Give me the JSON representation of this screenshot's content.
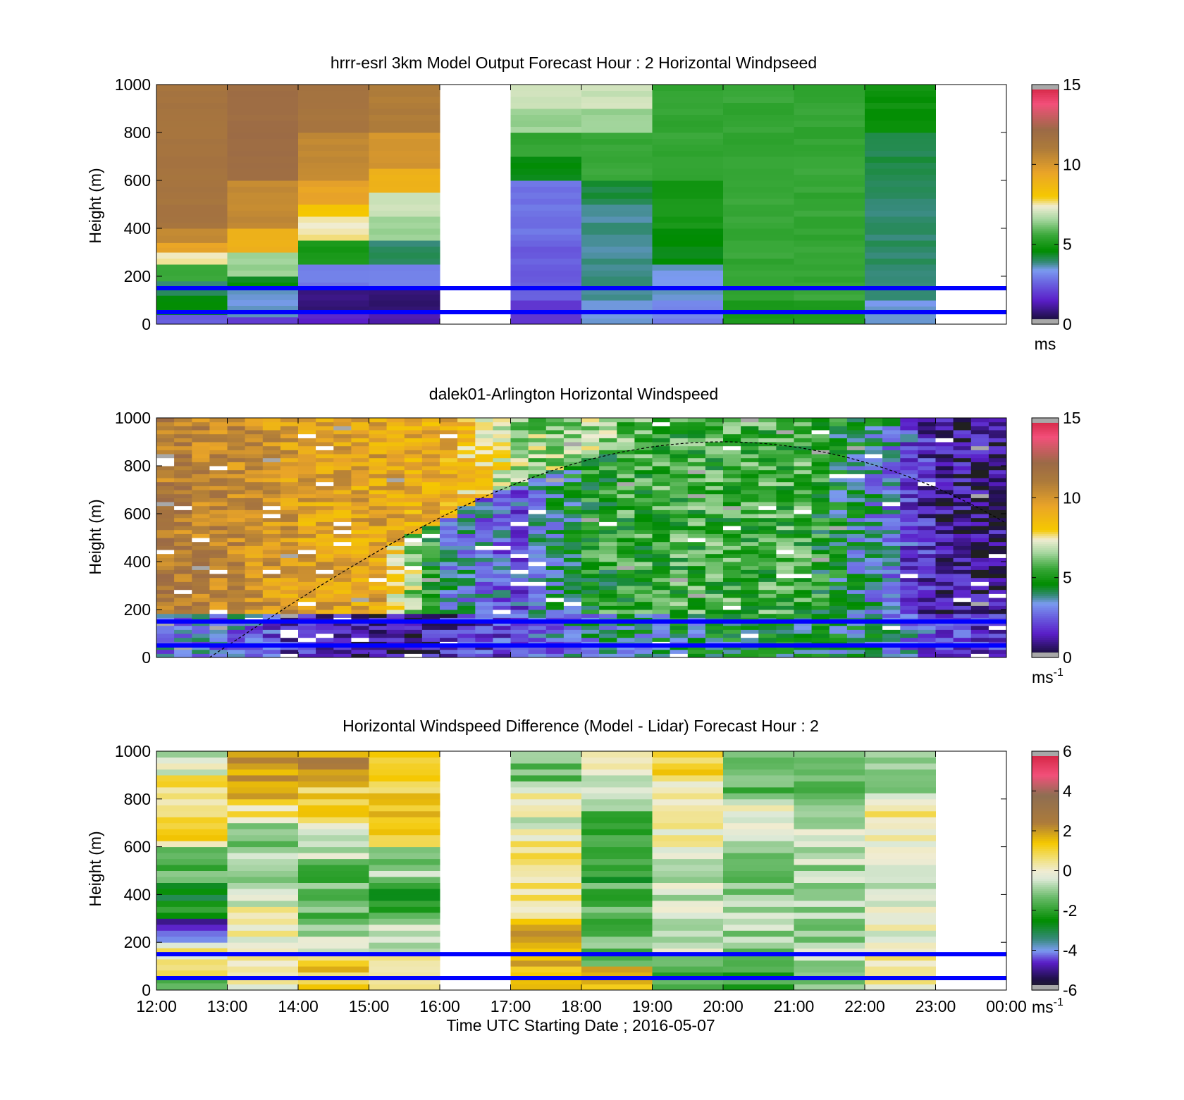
{
  "figure": {
    "x_ticks": [
      "12:00",
      "13:00",
      "14:00",
      "15:00",
      "16:00",
      "17:00",
      "18:00",
      "19:00",
      "20:00",
      "21:00",
      "22:00",
      "23:00",
      "00:00"
    ],
    "x_label": "Time UTC  Starting Date ; 2016-05-07",
    "y_label": "Height (m)",
    "y_ticks": [
      "0",
      "200",
      "400",
      "600",
      "800",
      "1000"
    ],
    "ref_line_color": "#0000ff",
    "colors": {
      "brown": "#ad7b3a",
      "orange": "#e9a428",
      "yellow": "#f5c800",
      "cream": "#f0ecd2",
      "green": "#008c00",
      "teal": "#358a78",
      "blue": "#7b9bf0",
      "purple": "#5a1ec8",
      "navy": "#20104c",
      "pink": "#f2507a",
      "gray": "#a8a8a8"
    }
  },
  "chart_data": [
    {
      "type": "heatmap",
      "id": "model",
      "title": "hrrr-esrl 3km Model Output   Forecast Hour : 2 Horizontal Windpseed",
      "ylabel": "Height (m)",
      "ylim": [
        0,
        1000
      ],
      "x_range": [
        "12:00",
        "00:00"
      ],
      "colorbar": {
        "min": 0,
        "max": 15,
        "ticks": [
          "0",
          "5",
          "10",
          "15"
        ],
        "unit": "ms"
      },
      "reference_heights_m": [
        50,
        150
      ],
      "columns_hour_start": [
        12,
        13,
        14,
        15,
        16,
        17,
        18,
        19,
        20,
        21,
        22,
        23
      ],
      "column_profiles_ms": [
        [
          [
            0,
            40,
            2.5
          ],
          [
            40,
            120,
            4.5
          ],
          [
            120,
            180,
            4.0
          ],
          [
            180,
            250,
            5.5
          ],
          [
            250,
            300,
            7.5
          ],
          [
            300,
            340,
            9.5
          ],
          [
            340,
            400,
            10.5
          ],
          [
            400,
            1000,
            11.5
          ]
        ],
        [
          [
            0,
            30,
            2.0
          ],
          [
            30,
            150,
            3.5
          ],
          [
            150,
            200,
            4.5
          ],
          [
            200,
            300,
            6.5
          ],
          [
            300,
            400,
            9.0
          ],
          [
            400,
            600,
            10.5
          ],
          [
            600,
            1000,
            12.0
          ]
        ],
        [
          [
            0,
            50,
            1.5
          ],
          [
            50,
            150,
            0.8
          ],
          [
            150,
            250,
            3.0
          ],
          [
            250,
            350,
            5.0
          ],
          [
            350,
            450,
            7.5
          ],
          [
            450,
            500,
            8.0
          ],
          [
            500,
            600,
            9.5
          ],
          [
            600,
            800,
            10.5
          ],
          [
            800,
            1000,
            11.5
          ]
        ],
        [
          [
            0,
            50,
            1.2
          ],
          [
            50,
            150,
            0.8
          ],
          [
            150,
            250,
            3.0
          ],
          [
            250,
            350,
            4.0
          ],
          [
            350,
            450,
            6.5
          ],
          [
            450,
            550,
            7.0
          ],
          [
            550,
            650,
            9.0
          ],
          [
            650,
            800,
            10.0
          ],
          [
            800,
            1000,
            11.0
          ]
        ],
        null,
        [
          [
            0,
            100,
            2.0
          ],
          [
            100,
            350,
            2.5
          ],
          [
            350,
            600,
            2.8
          ],
          [
            600,
            700,
            4.5
          ],
          [
            700,
            800,
            5.5
          ],
          [
            800,
            900,
            6.5
          ],
          [
            900,
            1000,
            7.0
          ]
        ],
        [
          [
            0,
            100,
            3.5
          ],
          [
            100,
            500,
            3.8
          ],
          [
            500,
            600,
            4.2
          ],
          [
            600,
            800,
            5.5
          ],
          [
            800,
            900,
            6.5
          ],
          [
            900,
            1000,
            7.0
          ]
        ],
        [
          [
            0,
            100,
            3.0
          ],
          [
            100,
            250,
            3.5
          ],
          [
            250,
            400,
            4.5
          ],
          [
            400,
            600,
            5.0
          ],
          [
            600,
            1000,
            5.5
          ]
        ],
        [
          [
            0,
            100,
            5.0
          ],
          [
            100,
            1000,
            5.5
          ]
        ],
        [
          [
            0,
            100,
            5.0
          ],
          [
            100,
            1000,
            5.5
          ]
        ],
        [
          [
            0,
            100,
            3.5
          ],
          [
            100,
            600,
            4.0
          ],
          [
            600,
            800,
            4.2
          ],
          [
            800,
            1000,
            4.8
          ]
        ],
        null
      ]
    },
    {
      "type": "heatmap",
      "id": "lidar",
      "title": "dalek01-Arlington  Horizontal Windspeed",
      "ylabel": "Height (m)",
      "ylim": [
        0,
        1000
      ],
      "x_range": [
        "12:00",
        "00:00"
      ],
      "colorbar": {
        "min": 0,
        "max": 15,
        "ticks": [
          "0",
          "5",
          "10",
          "15"
        ],
        "unit": "ms",
        "unit_exponent": "-1"
      },
      "reference_heights_m": [
        50,
        150
      ],
      "boundary_layer_curve": {
        "style": "dashed",
        "start_hour": 12.75,
        "peak_hour": 20.0,
        "peak_height_m": 900,
        "end_height_m": 560
      },
      "hourly_regimes_ms": [
        {
          "hour": 12,
          "near_surface": 3.0,
          "mid": 13.5,
          "upper": 11.0
        },
        {
          "hour": 13,
          "near_surface": 3.0,
          "mid": 11.5,
          "upper": 10.5
        },
        {
          "hour": 14,
          "near_surface": 1.5,
          "mid": 9.5,
          "upper": 9.5
        },
        {
          "hour": 15,
          "near_surface": 1.0,
          "mid": 9.5,
          "upper": 9.5
        },
        {
          "hour": 16,
          "near_surface": 1.5,
          "mid": 3.5,
          "upper": 9.0
        },
        {
          "hour": 17,
          "near_surface": 2.5,
          "mid": 2.5,
          "upper": 6.5
        },
        {
          "hour": 18,
          "near_surface": 3.5,
          "mid": 5.0,
          "upper": 6.5
        },
        {
          "hour": 19,
          "near_surface": 4.0,
          "mid": 5.5,
          "upper": 5.5
        },
        {
          "hour": 20,
          "near_surface": 4.5,
          "mid": 5.5,
          "upper": 5.5
        },
        {
          "hour": 21,
          "near_surface": 4.5,
          "mid": 5.5,
          "upper": 5.5
        },
        {
          "hour": 22,
          "near_surface": 4.0,
          "mid": 3.5,
          "upper": 4.0
        },
        {
          "hour": 23,
          "near_surface": 2.0,
          "mid": 1.0,
          "upper": 1.0
        }
      ]
    },
    {
      "type": "heatmap",
      "id": "difference",
      "title": "Horizontal Windspeed Difference (Model - Lidar) Forecast Hour : 2",
      "ylabel": "Height (m)",
      "xlabel": "Time UTC  Starting Date ; 2016-05-07",
      "ylim": [
        0,
        1000
      ],
      "x_range": [
        "12:00",
        "00:00"
      ],
      "colorbar": {
        "min": -6,
        "max": 6,
        "ticks": [
          "-6",
          "-4",
          "-2",
          "0",
          "2",
          "4",
          "6"
        ],
        "unit": "ms",
        "unit_exponent": "-1"
      },
      "reference_heights_m": [
        50,
        150
      ],
      "columns_hour_start": [
        12,
        13,
        14,
        15,
        16,
        17,
        18,
        19,
        20,
        21,
        22,
        23
      ],
      "column_profiles_ms": [
        [
          [
            0,
            60,
            -2.0
          ],
          [
            60,
            200,
            0.3
          ],
          [
            200,
            300,
            -4.5
          ],
          [
            300,
            450,
            -2.5
          ],
          [
            450,
            600,
            -1.5
          ],
          [
            600,
            900,
            0.8
          ],
          [
            900,
            1000,
            -0.5
          ]
        ],
        [
          [
            0,
            150,
            0.2
          ],
          [
            150,
            350,
            0.0
          ],
          [
            350,
            550,
            -0.8
          ],
          [
            550,
            700,
            -1.0
          ],
          [
            700,
            800,
            0.5
          ],
          [
            800,
            1000,
            2.0
          ]
        ],
        [
          [
            0,
            150,
            1.2
          ],
          [
            150,
            300,
            -0.8
          ],
          [
            300,
            550,
            -1.5
          ],
          [
            550,
            700,
            -0.5
          ],
          [
            700,
            850,
            1.0
          ],
          [
            850,
            1000,
            2.2
          ]
        ],
        [
          [
            0,
            150,
            0.8
          ],
          [
            150,
            300,
            -0.6
          ],
          [
            300,
            450,
            -2.0
          ],
          [
            450,
            600,
            -1.0
          ],
          [
            600,
            1000,
            1.2
          ]
        ],
        null,
        [
          [
            0,
            300,
            1.5
          ],
          [
            300,
            650,
            0.4
          ],
          [
            650,
            750,
            -0.2
          ],
          [
            750,
            850,
            0.2
          ],
          [
            850,
            1000,
            -1.2
          ]
        ],
        [
          [
            0,
            100,
            1.5
          ],
          [
            100,
            450,
            -1.5
          ],
          [
            450,
            750,
            -2.2
          ],
          [
            750,
            900,
            -0.6
          ],
          [
            900,
            1000,
            0.3
          ]
        ],
        [
          [
            0,
            150,
            -1.8
          ],
          [
            150,
            600,
            -0.5
          ],
          [
            600,
            900,
            0.2
          ],
          [
            900,
            1000,
            0.8
          ]
        ],
        [
          [
            0,
            150,
            -1.8
          ],
          [
            150,
            600,
            -1.0
          ],
          [
            600,
            800,
            -0.3
          ],
          [
            800,
            1000,
            -1.5
          ]
        ],
        [
          [
            0,
            150,
            -1.0
          ],
          [
            150,
            600,
            -0.8
          ],
          [
            600,
            800,
            -0.6
          ],
          [
            800,
            1000,
            -1.2
          ]
        ],
        [
          [
            0,
            150,
            0.2
          ],
          [
            150,
            600,
            -0.2
          ],
          [
            600,
            800,
            0.3
          ],
          [
            800,
            1000,
            -0.6
          ]
        ],
        null
      ]
    }
  ]
}
